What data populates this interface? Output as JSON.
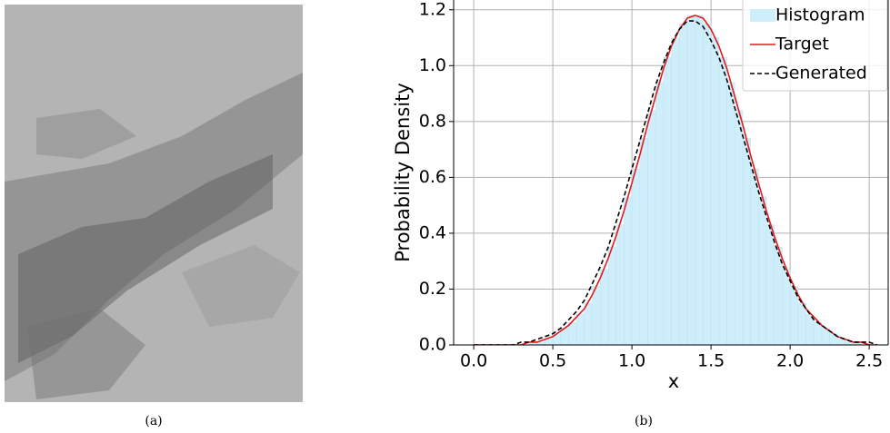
{
  "chart_data": {
    "type": "histogram",
    "xlabel": "x",
    "ylabel": "Probability Density",
    "xlim": [
      -0.127,
      2.62
    ],
    "ylim": [
      0,
      1.235
    ],
    "xticks": [
      {
        "value": 0,
        "label": "0.0"
      },
      0.5,
      {
        "value": 1,
        "label": "1.0"
      },
      1.5,
      {
        "value": 2,
        "label": "2.0"
      },
      2.5
    ],
    "yticks": [
      {
        "value": 0,
        "label": "0.0"
      },
      0.2,
      0.4,
      0.6,
      0.8,
      {
        "value": 1,
        "label": "1.0"
      },
      1.2
    ],
    "grid": true,
    "legend": "upper right",
    "histogram": {
      "name": "Histogram",
      "color": "#cdeefa",
      "bins": [
        0.25,
        0.3,
        0.35,
        0.4,
        0.45,
        0.5,
        0.55,
        0.6,
        0.65,
        0.7,
        0.75,
        0.8,
        0.85,
        0.9,
        0.95,
        1.0,
        1.05,
        1.1,
        1.15,
        1.2,
        1.25,
        1.3,
        1.35,
        1.4,
        1.45,
        1.5,
        1.55,
        1.6,
        1.65,
        1.7,
        1.75,
        1.8,
        1.85,
        1.9,
        1.95,
        2.0,
        2.05,
        2.1,
        2.15,
        2.2,
        2.25,
        2.3,
        2.35,
        2.4,
        2.45,
        2.5
      ],
      "values": [
        0,
        0,
        0.01,
        0.01,
        0.02,
        0.04,
        0.06,
        0.08,
        0.11,
        0.15,
        0.21,
        0.27,
        0.35,
        0.43,
        0.53,
        0.63,
        0.74,
        0.84,
        0.94,
        1.03,
        1.1,
        1.15,
        1.18,
        1.18,
        1.15,
        1.1,
        1.03,
        0.94,
        0.84,
        0.74,
        0.63,
        0.53,
        0.43,
        0.35,
        0.27,
        0.21,
        0.15,
        0.11,
        0.08,
        0.06,
        0.04,
        0.02,
        0.01,
        0.01,
        0
      ]
    },
    "x": [
      0,
      0.05,
      0.1,
      0.15,
      0.2,
      0.25,
      0.3,
      0.35,
      0.4,
      0.45,
      0.5,
      0.55,
      0.6,
      0.65,
      0.7,
      0.75,
      0.8,
      0.85,
      0.9,
      0.95,
      1.0,
      1.05,
      1.1,
      1.15,
      1.2,
      1.25,
      1.3,
      1.35,
      1.4,
      1.45,
      1.5,
      1.55,
      1.6,
      1.65,
      1.7,
      1.75,
      1.8,
      1.85,
      1.9,
      1.95,
      2.0,
      2.05,
      2.1,
      2.15,
      2.2,
      2.25,
      2.3,
      2.35,
      2.4,
      2.45,
      2.5,
      2.55
    ],
    "series": [
      {
        "name": "Target",
        "color": "#e41a1c",
        "style": "solid",
        "values": [
          0,
          0,
          0,
          0,
          0,
          0,
          0,
          0.01,
          0.01,
          0.02,
          0.03,
          0.05,
          0.07,
          0.1,
          0.13,
          0.18,
          0.24,
          0.31,
          0.39,
          0.48,
          0.58,
          0.68,
          0.79,
          0.89,
          0.99,
          1.07,
          1.13,
          1.17,
          1.18,
          1.17,
          1.13,
          1.07,
          0.99,
          0.89,
          0.79,
          0.68,
          0.58,
          0.48,
          0.39,
          0.31,
          0.24,
          0.18,
          0.13,
          0.1,
          0.07,
          0.05,
          0.03,
          0.02,
          0.01,
          0.01,
          0,
          0
        ]
      },
      {
        "name": "Generated",
        "color": "#000000",
        "style": "dashed",
        "values": [
          0,
          0,
          0,
          0,
          0,
          0,
          0.01,
          0.01,
          0.02,
          0.03,
          0.04,
          0.06,
          0.09,
          0.12,
          0.16,
          0.22,
          0.28,
          0.35,
          0.44,
          0.53,
          0.63,
          0.73,
          0.83,
          0.93,
          1.01,
          1.08,
          1.13,
          1.16,
          1.16,
          1.14,
          1.09,
          1.03,
          0.95,
          0.85,
          0.75,
          0.65,
          0.55,
          0.46,
          0.37,
          0.29,
          0.23,
          0.17,
          0.13,
          0.09,
          0.07,
          0.05,
          0.03,
          0.02,
          0.01,
          0.01,
          0.01,
          0
        ]
      }
    ]
  },
  "captions": [
    "(a)",
    "(b)"
  ]
}
